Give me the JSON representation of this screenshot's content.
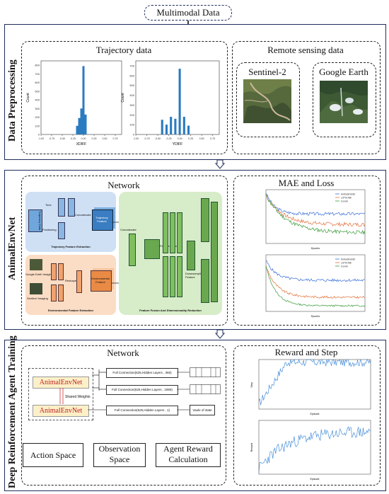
{
  "top": {
    "title": "Multimodal Data"
  },
  "sections": {
    "preprocessing": "Data Preprocessing",
    "animalenvnet": "AnimalEnvNet",
    "drl": "Deep Reinforcement Agent Training"
  },
  "preprocessing": {
    "trajectory_title": "Trajectory data",
    "remote_title": "Remote sensing data",
    "sentinel": "Sentinel-2",
    "google": "Google Earth"
  },
  "chart_data": [
    {
      "type": "bar",
      "x": [
        -0.15,
        -0.1,
        -0.05,
        0.0,
        0.05
      ],
      "values": [
        100,
        190,
        300,
        790,
        230
      ],
      "xlabel": "XDIFF",
      "ylabel": "Count",
      "xticks": [
        "-1.00",
        "-0.75",
        "-0.50",
        "-0.25",
        "0.00",
        "0.25",
        "0.50",
        "0.75"
      ],
      "yticks": [
        "0",
        "100",
        "200",
        "300",
        "400",
        "500",
        "600",
        "700",
        "800"
      ],
      "xlim": [
        -1.0,
        0.9
      ],
      "ylim": [
        0,
        850
      ]
    },
    {
      "type": "bar",
      "x": [
        -0.4,
        -0.3,
        -0.2,
        -0.1,
        0.0,
        0.1,
        0.2
      ],
      "values": [
        150,
        100,
        180,
        160,
        670,
        180,
        90
      ],
      "xlabel": "YDIFF",
      "ylabel": "Count",
      "xticks": [
        "-1.00",
        "-0.75",
        "-0.50",
        "-0.25",
        "0.00",
        "0.25",
        "0.50",
        "0.75"
      ],
      "yticks": [
        "0",
        "100",
        "200",
        "300",
        "400",
        "500",
        "600",
        "700"
      ],
      "xlim": [
        -1.0,
        0.9
      ],
      "ylim": [
        0,
        750
      ]
    }
  ],
  "network": {
    "title": "Network",
    "traj_label": "Trajectory Feature Extraction",
    "env_label": "Environmental Feature Extraction",
    "fusion_label": "Feature Fusion And Dimensionality Reduction",
    "traj_input": "Trajectory Data",
    "time": "Time",
    "positioning": "Positioning",
    "concat": "Concatenate",
    "traj_feature": "Trajectory Feature",
    "google_img": "Google Earth Imaging",
    "sentinel_img": "Sentinel Imaging",
    "env_feature": "Environmental Feature",
    "reshape": "Reshape",
    "feature_fusion": "Feature Fusion",
    "downsample": "Downsampling Feature"
  },
  "mae": {
    "title": "MAE and Loss",
    "legend": [
      "AnimalEnvNet",
      "LSTM-Attn",
      "ConvIn"
    ],
    "xlabel": "Epochs"
  },
  "drl": {
    "network_title": "Network",
    "animal1": "AnimalEnvNet",
    "animal2": "AnimalEnvNet",
    "shared": "Shared Weights",
    "fc1": "Full Connection(625,Hidden Layers , 360)",
    "fc2": "Full Connection(625,Hidden Layers , 1990)",
    "fc3": "Full Connection(625,Hidden Layers , 1)",
    "vout": "Vaule of state",
    "action": "Action Space",
    "observation": "Observation Space",
    "reward": "Agent Reward Calculation",
    "reward_title": "Reward and Step",
    "step_label": "Step",
    "episode": "Episode",
    "reward_label": "Reward"
  },
  "colors": {
    "panel_border": "#1f2d5c",
    "bar_blue": "#2b7bc1",
    "traj_bg": "#cfe0f5",
    "env_bg": "#fbdcc5",
    "fusion_bg": "#d7ecc8",
    "green_block": "#7fbf5e",
    "animal_fill": "#fdf0c8"
  }
}
